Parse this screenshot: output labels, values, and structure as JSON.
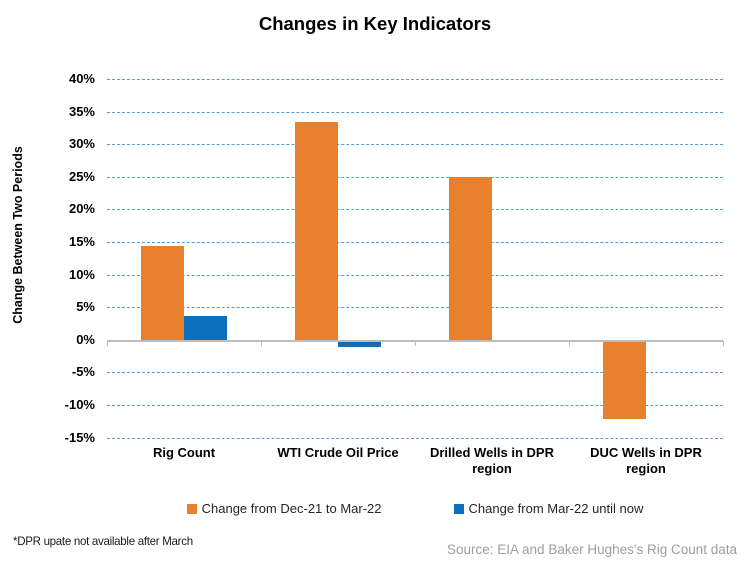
{
  "chart_data": {
    "type": "bar",
    "title": "Changes in Key Indicators",
    "ylabel": "Change Between Two Periods",
    "xlabel": "",
    "categories": [
      "Rig Count",
      "WTI Crude Oil Price",
      "Drilled Wells in DPR region",
      "DUC Wells in DPR region"
    ],
    "series": [
      {
        "name": "Change from Dec-21 to Mar-22",
        "color": "#E8812D",
        "values": [
          14.4,
          33.4,
          24.9,
          -12.0
        ]
      },
      {
        "name": "Change from Mar-22 until now",
        "color": "#0B6FBD",
        "values": [
          3.7,
          -0.9,
          null,
          null
        ]
      }
    ],
    "ylim": [
      -15,
      40
    ],
    "ytick_step": 5,
    "ytick_format": "percent",
    "grid": "horizontal-dashed",
    "gridline_color": "#5B9BD5",
    "axis_line_color": "#BDBDBD",
    "legend_position": "bottom"
  },
  "footnote": "*DPR upate not available after March",
  "source": "Source: EIA and Baker Hughes's Rig Count data"
}
